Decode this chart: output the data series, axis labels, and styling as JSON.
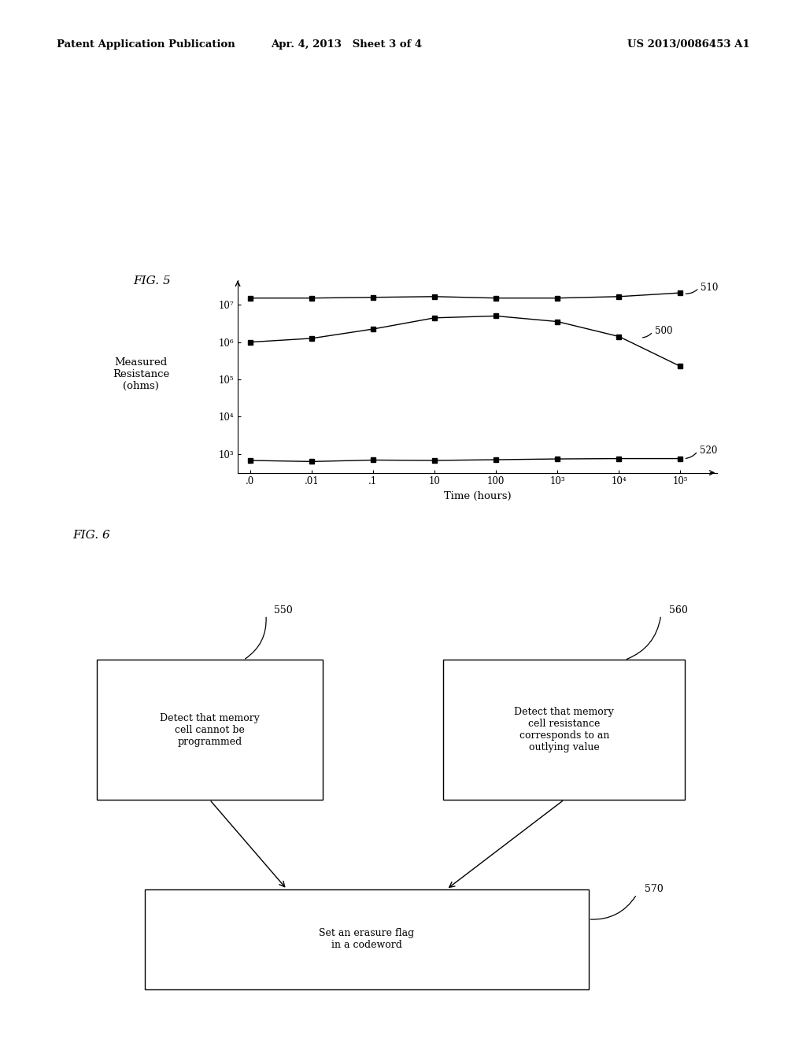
{
  "header_left": "Patent Application Publication",
  "header_mid": "Apr. 4, 2013   Sheet 3 of 4",
  "header_right": "US 2013/0086453 A1",
  "fig5_label": "FIG. 5",
  "fig6_label": "FIG. 6",
  "ylabel": "Measured\nResistance\n(ohms)",
  "xlabel": "Time (hours)",
  "x_tick_labels": [
    ".0",
    ".01",
    ".1",
    "10",
    "100",
    "10³",
    "10⁴",
    "10⁵"
  ],
  "x_tick_positions": [
    0,
    1,
    2,
    3,
    4,
    5,
    6,
    7
  ],
  "ytick_labels": [
    "10³",
    "10⁴",
    "10⁵",
    "10⁶",
    "10⁷"
  ],
  "ytick_positions": [
    3,
    4,
    5,
    6,
    7
  ],
  "line510_x": [
    0,
    1,
    2,
    3,
    4,
    5,
    6,
    7
  ],
  "line510_y": [
    7.18,
    7.18,
    7.2,
    7.22,
    7.18,
    7.18,
    7.22,
    7.32
  ],
  "line500_x": [
    0,
    1,
    2,
    3,
    4,
    5,
    6,
    7
  ],
  "line500_y": [
    6.0,
    6.1,
    6.35,
    6.65,
    6.7,
    6.55,
    6.15,
    5.35
  ],
  "line520_x": [
    0,
    1,
    2,
    3,
    4,
    5,
    6,
    7
  ],
  "line520_y": [
    2.83,
    2.8,
    2.84,
    2.83,
    2.85,
    2.87,
    2.88,
    2.88
  ],
  "line510_label": "510",
  "line500_label": "500",
  "line520_label": "520",
  "box550_text": "Detect that memory\ncell cannot be\nprogrammed",
  "box550_label": "550",
  "box560_text": "Detect that memory\ncell resistance\ncorresponds to an\noutlying value",
  "box560_label": "560",
  "box570_text": "Set an erasure flag\nin a codeword",
  "box570_label": "570",
  "bg_color": "#ffffff",
  "line_color": "#000000",
  "text_color": "#000000"
}
